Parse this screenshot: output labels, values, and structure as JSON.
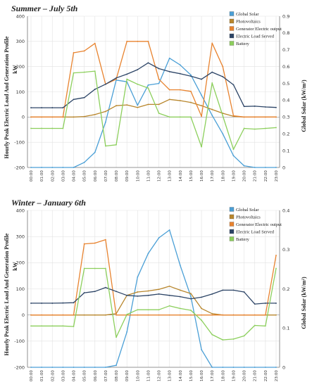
{
  "chart_data": [
    {
      "type": "line",
      "title": "Summer – July 5th",
      "ylabel": "Hourly Peak Electric Load And Generation Profile",
      "yunit": "kW",
      "y2label": "Global Solar (kW/m²)",
      "ylim": [
        -200,
        400
      ],
      "y2lim": [
        0,
        0.9
      ],
      "yticks": [
        -200,
        -100,
        0,
        100,
        200,
        300,
        400
      ],
      "y2ticks": [
        0,
        0.1,
        0.2,
        0.3,
        0.4,
        0.5,
        0.6,
        0.7,
        0.8,
        0.9
      ],
      "x": [
        "00:00",
        "01:00",
        "02:00",
        "03:00",
        "04:00",
        "05:00",
        "06:00",
        "07:00",
        "08:00",
        "09:00",
        "10:00",
        "11:00",
        "12:00",
        "13:00",
        "14:00",
        "15:00",
        "16:00",
        "17:00",
        "18:00",
        "19:00",
        "20:00",
        "21:00",
        "22:00",
        "23:00"
      ],
      "legend_position": "top-right",
      "grid": true,
      "series": [
        {
          "name": "Global Solar",
          "axis": "right",
          "color": "#4a9fd6",
          "values": [
            0,
            0,
            0,
            0,
            0,
            0.03,
            0.09,
            0.27,
            0.52,
            0.51,
            0.37,
            0.49,
            0.5,
            0.65,
            0.61,
            0.55,
            0.43,
            0.31,
            0.2,
            0.07,
            0.01,
            0,
            0,
            0
          ]
        },
        {
          "name": "Photovoltaics",
          "axis": "left",
          "color": "#b8862c",
          "values": [
            0,
            0,
            0,
            0,
            0,
            2,
            10,
            22,
            45,
            48,
            38,
            50,
            50,
            70,
            65,
            58,
            45,
            30,
            15,
            3,
            0,
            0,
            0,
            0
          ]
        },
        {
          "name": "Generator Electric output",
          "axis": "left",
          "color": "#e8832f",
          "values": [
            0,
            0,
            0,
            0,
            255,
            262,
            292,
            130,
            150,
            300,
            300,
            300,
            150,
            108,
            108,
            102,
            3,
            293,
            200,
            5,
            0,
            0,
            0,
            0
          ]
        },
        {
          "name": "Electric Load Served",
          "axis": "left",
          "color": "#2c4466",
          "values": [
            37,
            37,
            37,
            37,
            70,
            77,
            110,
            130,
            155,
            170,
            188,
            215,
            192,
            180,
            172,
            162,
            150,
            178,
            160,
            128,
            42,
            43,
            40,
            38
          ]
        },
        {
          "name": "Battery",
          "axis": "left",
          "color": "#8ccf5c",
          "values": [
            -45,
            -45,
            -45,
            -45,
            175,
            178,
            182,
            -115,
            -110,
            150,
            130,
            115,
            15,
            0,
            0,
            0,
            -118,
            135,
            5,
            -128,
            -45,
            -48,
            -45,
            -42
          ]
        }
      ]
    },
    {
      "type": "line",
      "title": "Winter – January 6th",
      "ylabel": "Hourly Peak Electric Load And Generation Profile",
      "yunit": "kW",
      "y2label": "Global Solar (kW/m²)",
      "ylim": [
        -200,
        400
      ],
      "y2lim": [
        0,
        0.4
      ],
      "yticks": [
        -200,
        -100,
        0,
        100,
        200,
        300,
        400
      ],
      "y2ticks": [
        0,
        0.1,
        0.2,
        0.3,
        0.4
      ],
      "x": [
        "00:00",
        "01:00",
        "02:00",
        "03:00",
        "04:00",
        "05:00",
        "06:00",
        "07:00",
        "08:00",
        "09:00",
        "10:00",
        "11:00",
        "12:00",
        "13:00",
        "14:00",
        "15:00",
        "16:00",
        "17:00",
        "18:00",
        "19:00",
        "20:00",
        "21:00",
        "22:00",
        "23:00"
      ],
      "legend_position": "top-right",
      "grid": true,
      "series": [
        {
          "name": "Global Solar",
          "axis": "right",
          "color": "#4a9fd6",
          "values": [
            0,
            0,
            0,
            0,
            0,
            0,
            0,
            0,
            0.005,
            0.09,
            0.23,
            0.29,
            0.33,
            0.35,
            0.26,
            0.18,
            0.045,
            0,
            0,
            0,
            0,
            0,
            0,
            0
          ]
        },
        {
          "name": "Photovoltaics",
          "axis": "left",
          "color": "#b8862c",
          "values": [
            0,
            0,
            0,
            0,
            0,
            0,
            0,
            0,
            5,
            75,
            88,
            92,
            98,
            110,
            95,
            82,
            25,
            5,
            0,
            0,
            0,
            0,
            0,
            0
          ]
        },
        {
          "name": "Generator Electric output",
          "axis": "left",
          "color": "#e8832f",
          "values": [
            0,
            0,
            0,
            0,
            0,
            272,
            275,
            288,
            0,
            0,
            0,
            0,
            0,
            0,
            0,
            0,
            0,
            0,
            0,
            0,
            0,
            0,
            0,
            228
          ]
        },
        {
          "name": "Electric Load Served",
          "axis": "left",
          "color": "#2c4466",
          "values": [
            45,
            45,
            45,
            46,
            47,
            85,
            90,
            105,
            90,
            75,
            72,
            75,
            80,
            75,
            70,
            62,
            68,
            80,
            95,
            95,
            88,
            42,
            45,
            45
          ]
        },
        {
          "name": "Battery",
          "axis": "left",
          "color": "#8ccf5c",
          "values": [
            -42,
            -42,
            -42,
            -42,
            -44,
            178,
            178,
            178,
            -85,
            2,
            20,
            20,
            20,
            35,
            25,
            18,
            -20,
            -75,
            -95,
            -92,
            -80,
            -40,
            -42,
            178
          ]
        }
      ]
    }
  ]
}
